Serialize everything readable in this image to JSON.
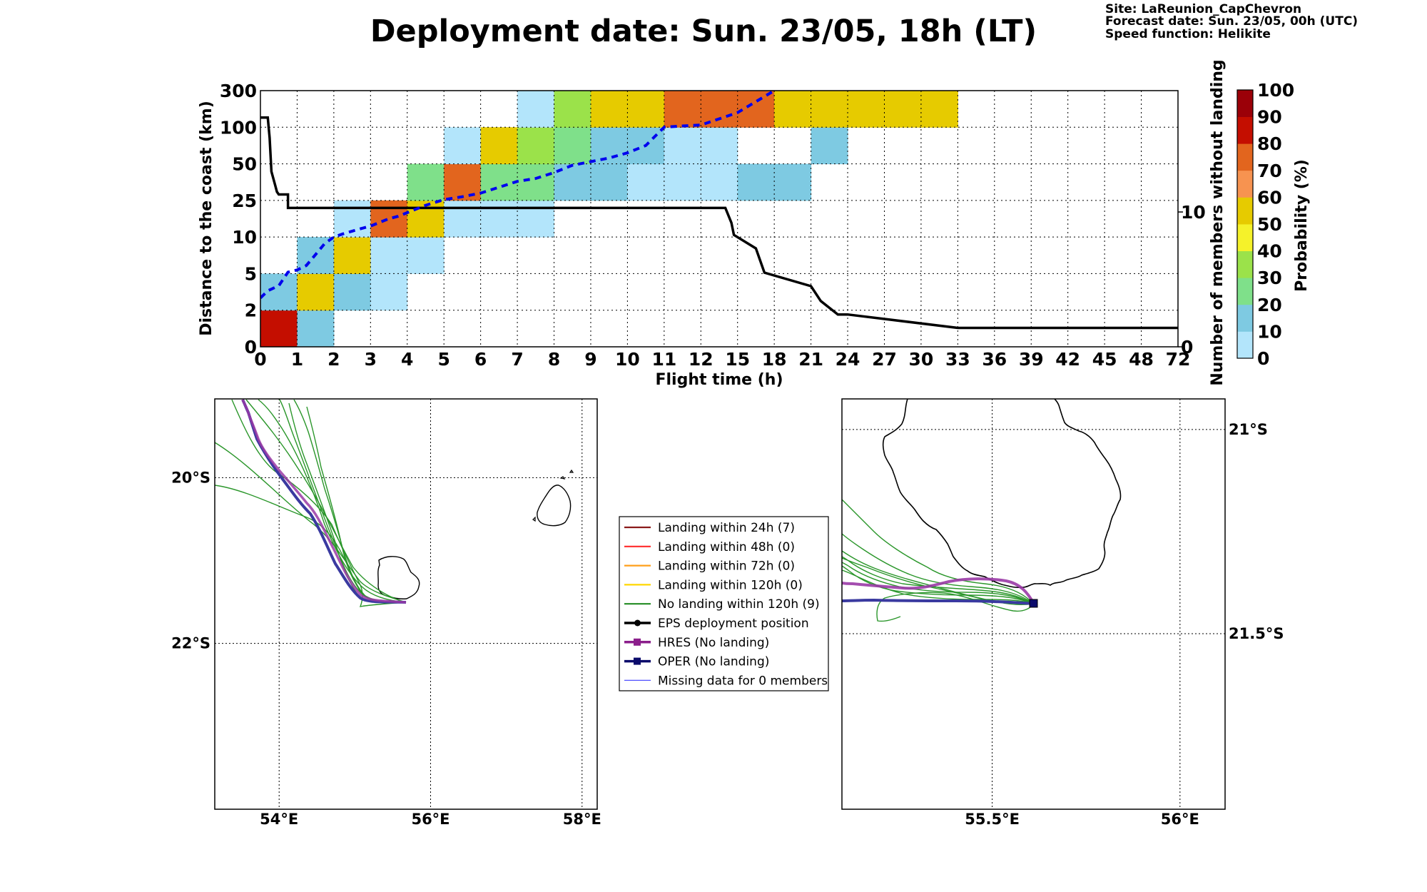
{
  "title": "Deployment date: Sun. 23/05, 18h (LT)",
  "meta": {
    "site": "Site: LaReunion_CapChevron",
    "forecast": "Forecast date: Sun. 23/05, 00h (UTC)",
    "speed": "Speed function: Helikite"
  },
  "chart_data": [
    {
      "type": "heatmap",
      "xlabel": "Flight time (h)",
      "ylabel": "Distance to the coast (km)",
      "y2label": "Number of members without landing",
      "colorbar_label": "Probability (%)",
      "x_ticks": [
        "0",
        "1",
        "2",
        "3",
        "4",
        "5",
        "6",
        "7",
        "8",
        "9",
        "10",
        "11",
        "12",
        "15",
        "18",
        "21",
        "24",
        "27",
        "30",
        "33",
        "36",
        "39",
        "42",
        "45",
        "48",
        "72"
      ],
      "y_ticks": [
        "0",
        "2",
        "5",
        "10",
        "25",
        "50",
        "100",
        "300"
      ],
      "y2_ticks": [
        "0",
        "10"
      ],
      "y2_range": [
        0,
        19
      ],
      "grid": true,
      "colorbar": {
        "ticks": [
          "0",
          "10",
          "20",
          "30",
          "40",
          "50",
          "60",
          "70",
          "80",
          "90",
          "100"
        ],
        "colors": [
          "#b3e5fb",
          "#7ecae2",
          "#7fe08a",
          "#9be24a",
          "#f5f22a",
          "#e6cb00",
          "#f79350",
          "#e2651e",
          "#c40e00",
          "#9b0008"
        ]
      },
      "cells": [
        {
          "x": 0,
          "y": 0,
          "p": 80
        },
        {
          "x": 1,
          "y": 0,
          "p": 10
        },
        {
          "x": 0,
          "y": 1,
          "p": 10
        },
        {
          "x": 1,
          "y": 1,
          "p": 50
        },
        {
          "x": 2,
          "y": 1,
          "p": 10
        },
        {
          "x": 3,
          "y": 1,
          "p": 0
        },
        {
          "x": 1,
          "y": 2,
          "p": 10
        },
        {
          "x": 2,
          "y": 2,
          "p": 50
        },
        {
          "x": 3,
          "y": 2,
          "p": 0
        },
        {
          "x": 4,
          "y": 2,
          "p": 0
        },
        {
          "x": 2,
          "y": 3,
          "p": 0
        },
        {
          "x": 3,
          "y": 3,
          "p": 70
        },
        {
          "x": 4,
          "y": 3,
          "p": 50
        },
        {
          "x": 5,
          "y": 3,
          "p": 0
        },
        {
          "x": 6,
          "y": 3,
          "p": 0
        },
        {
          "x": 7,
          "y": 3,
          "p": 0
        },
        {
          "x": 4,
          "y": 4,
          "p": 20
        },
        {
          "x": 5,
          "y": 4,
          "p": 70
        },
        {
          "x": 6,
          "y": 4,
          "p": 20
        },
        {
          "x": 7,
          "y": 4,
          "p": 20
        },
        {
          "x": 8,
          "y": 4,
          "p": 10
        },
        {
          "x": 9,
          "y": 4,
          "p": 10
        },
        {
          "x": 10,
          "y": 4,
          "p": 0
        },
        {
          "x": 11,
          "y": 4,
          "p": 0
        },
        {
          "x": 12,
          "y": 4,
          "p": 0
        },
        {
          "x": 13,
          "y": 4,
          "p": 10
        },
        {
          "x": 14,
          "y": 4,
          "p": 10
        },
        {
          "x": 5,
          "y": 5,
          "p": 0
        },
        {
          "x": 6,
          "y": 5,
          "p": 50
        },
        {
          "x": 7,
          "y": 5,
          "p": 30
        },
        {
          "x": 8,
          "y": 5,
          "p": 20
        },
        {
          "x": 9,
          "y": 5,
          "p": 10
        },
        {
          "x": 10,
          "y": 5,
          "p": 10
        },
        {
          "x": 11,
          "y": 5,
          "p": 0
        },
        {
          "x": 12,
          "y": 5,
          "p": 0
        },
        {
          "x": 15,
          "y": 5,
          "p": 10
        },
        {
          "x": 7,
          "y": 6,
          "p": 0
        },
        {
          "x": 8,
          "y": 6,
          "p": 30
        },
        {
          "x": 9,
          "y": 6,
          "p": 50
        },
        {
          "x": 10,
          "y": 6,
          "p": 50
        },
        {
          "x": 11,
          "y": 6,
          "p": 70
        },
        {
          "x": 12,
          "y": 6,
          "p": 70
        },
        {
          "x": 13,
          "y": 6,
          "p": 70
        },
        {
          "x": 14,
          "y": 6,
          "p": 50
        },
        {
          "x": 15,
          "y": 6,
          "p": 50
        },
        {
          "x": 16,
          "y": 6,
          "p": 50
        },
        {
          "x": 17,
          "y": 6,
          "p": 50
        },
        {
          "x": 18,
          "y": 6,
          "p": 50
        }
      ],
      "median_distance": {
        "style": "blue dashed",
        "x_hours": [
          0,
          0.2,
          0.5,
          0.75,
          1,
          1.25,
          1.5,
          1.75,
          2,
          2.25,
          2.5,
          2.75,
          3,
          3.25,
          3.5,
          3.75,
          4,
          4.5,
          5,
          5.5,
          6,
          6.5,
          7,
          7.5,
          8,
          8.5,
          9,
          9.5,
          10,
          10.5,
          11,
          11.5,
          12,
          15,
          18
        ],
        "y_km": [
          3,
          3.6,
          4,
          5.2,
          5.5,
          6.1,
          7.6,
          9.1,
          10,
          11.3,
          12.4,
          13.5,
          14.5,
          16,
          17.5,
          18.5,
          20,
          23,
          25.5,
          27.5,
          30,
          34,
          38,
          40,
          44,
          49,
          53,
          58,
          65,
          75,
          100,
          107,
          112,
          180,
          300
        ]
      },
      "members_without_landing": {
        "style": "black solid",
        "x_hours": [
          0,
          0.2,
          0.25,
          0.3,
          0.4,
          0.45,
          0.5,
          0.6,
          0.75,
          0.75,
          1,
          1.5,
          2,
          3,
          4,
          5,
          6,
          7,
          8,
          9,
          10,
          11,
          12,
          14,
          14.5,
          14.7,
          16.5,
          17.2,
          21,
          21.8,
          23.2,
          24,
          33,
          72
        ],
        "members": [
          17,
          17,
          15.5,
          13,
          12,
          11.5,
          11.3,
          11.3,
          11.3,
          10.3,
          10.3,
          10.3,
          10.3,
          10.3,
          10.3,
          10.3,
          10.3,
          10.3,
          10.3,
          10.3,
          10.3,
          10.3,
          10.3,
          10.3,
          9.2,
          8.3,
          7.3,
          5.5,
          4.5,
          3.4,
          2.4,
          2.4,
          1.4,
          1.4
        ]
      }
    }
  ],
  "left_map": {
    "lon_ticks": [
      "54°E",
      "56°E",
      "58°E"
    ],
    "lat_ticks": [
      "20°S",
      "22°S"
    ],
    "lon_values": [
      54,
      56,
      58
    ],
    "lat_values": [
      -20,
      -22
    ],
    "lon_range": [
      53.15,
      58.2
    ],
    "lat_range": [
      -19.05,
      -24.0
    ]
  },
  "right_map": {
    "lon_ticks": [
      "55.5°E",
      "56°E"
    ],
    "lat_ticks": [
      "21°S",
      "21.5°S"
    ],
    "lon_values": [
      55.5,
      56.0
    ],
    "lat_values": [
      -21.0,
      -21.5
    ],
    "lon_range": [
      55.1,
      56.12
    ],
    "lat_range": [
      -20.925,
      -21.93
    ]
  },
  "legend": [
    {
      "label": "Landing within 24h (7)",
      "color": "#8b1a1a",
      "style": "line"
    },
    {
      "label": "Landing within 48h (0)",
      "color": "#ff2a2a",
      "style": "line"
    },
    {
      "label": "Landing within 72h (0)",
      "color": "#ff9f1a",
      "style": "line"
    },
    {
      "label": "Landing within 120h (0)",
      "color": "#ffd700",
      "style": "line"
    },
    {
      "label": "No landing within 120h (9)",
      "color": "#238b23",
      "style": "line"
    },
    {
      "label": "EPS deployment position",
      "color": "#000000",
      "style": "circle"
    },
    {
      "label": "HRES (No landing)",
      "color": "#8b1e8b",
      "style": "square"
    },
    {
      "label": "OPER (No landing)",
      "color": "#0b0b6b",
      "style": "square"
    },
    {
      "label": "Missing data for 0 members",
      "color": "#4f4fff",
      "style": "thin"
    }
  ]
}
